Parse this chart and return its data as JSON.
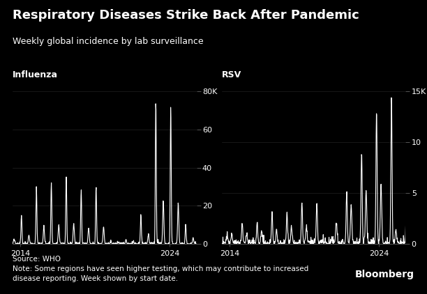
{
  "title": "Respiratory Diseases Strike Back After Pandemic",
  "subtitle": "Weekly global incidence by lab surveillance",
  "source_note": "Source: WHO\nNote: Some regions have seen higher testing, which may contribute to increased\ndisease reporting. Week shown by start date.",
  "bloomberg_label": "Bloomberg",
  "panel_labels": [
    "Influenza",
    "RSV"
  ],
  "bg_color": "#000000",
  "line_color": "#ffffff",
  "text_color": "#ffffff",
  "influenza_ylim": [
    0,
    80000
  ],
  "influenza_yticks": [
    0,
    20000,
    40000,
    60000,
    80000
  ],
  "influenza_ytick_labels": [
    "0",
    "20",
    "40",
    "60",
    "80K"
  ],
  "rsv_ylim": [
    0,
    15000
  ],
  "rsv_yticks": [
    0,
    5000,
    10000,
    15000
  ],
  "rsv_ytick_labels": [
    "0",
    "5",
    "10",
    "15K"
  ],
  "xtick_years": [
    2014,
    2024
  ],
  "title_fontsize": 13,
  "subtitle_fontsize": 9,
  "panel_label_fontsize": 9,
  "tick_fontsize": 8,
  "note_fontsize": 7.5,
  "bloomberg_fontsize": 10
}
